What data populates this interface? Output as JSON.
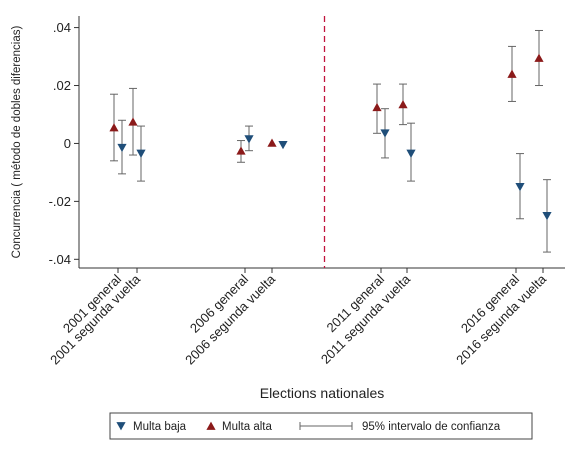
{
  "chart_data": {
    "type": "scatter",
    "title": "",
    "xlabel": "Elections nationales",
    "ylabel": "Concurrencia ( método de dobles diferencias)",
    "ylim": [
      -0.043,
      0.044
    ],
    "yticks": [
      {
        "value": 0.04,
        "label": ".04"
      },
      {
        "value": 0.02,
        "label": ".02"
      },
      {
        "value": 0,
        "label": "0"
      },
      {
        "value": -0.02,
        "label": "-.02"
      },
      {
        "value": -0.04,
        "label": "-.04"
      }
    ],
    "categories": [
      "2001 general",
      "2001 segunda vuelta",
      "2006 general",
      "2006 segunda vuelta",
      "2011 general",
      "2011 segunda vuelta",
      "2016 general",
      "2016 segunda vuelta"
    ],
    "reference_line": {
      "between": [
        "2006 segunda vuelta",
        "2011 general"
      ],
      "style": "dashed",
      "color": "#c0143c"
    },
    "grid": false,
    "legend_position": "bottom",
    "series": [
      {
        "name": "Multa alta",
        "marker": "triangle-up",
        "color": "#8b1a1a",
        "points": [
          {
            "category": "2001 general",
            "y": 0.0055,
            "ci": [
              -0.006,
              0.017
            ]
          },
          {
            "category": "2001 segunda vuelta",
            "y": 0.0075,
            "ci": [
              -0.004,
              0.019
            ]
          },
          {
            "category": "2006 general",
            "y": -0.0025,
            "ci": [
              -0.0065,
              0.001
            ]
          },
          {
            "category": "2006 segunda vuelta",
            "y": 0.0002,
            "ci": null
          },
          {
            "category": "2011 general",
            "y": 0.0125,
            "ci": [
              0.0035,
              0.0205
            ]
          },
          {
            "category": "2011 segunda vuelta",
            "y": 0.0135,
            "ci": [
              0.0065,
              0.0205
            ]
          },
          {
            "category": "2016 general",
            "y": 0.024,
            "ci": [
              0.0145,
              0.0335
            ]
          },
          {
            "category": "2016 segunda vuelta",
            "y": 0.0295,
            "ci": [
              0.02,
              0.039
            ]
          }
        ]
      },
      {
        "name": "Multa baja",
        "marker": "triangle-down",
        "color": "#1f4e79",
        "points": [
          {
            "category": "2001 general",
            "y": -0.0015,
            "ci": [
              -0.0105,
              0.008
            ]
          },
          {
            "category": "2001 segunda vuelta",
            "y": -0.0035,
            "ci": [
              -0.013,
              0.006
            ]
          },
          {
            "category": "2006 general",
            "y": 0.0015,
            "ci": [
              -0.0025,
              0.006
            ]
          },
          {
            "category": "2006 segunda vuelta",
            "y": -0.0005,
            "ci": null
          },
          {
            "category": "2011 general",
            "y": 0.0035,
            "ci": [
              -0.005,
              0.012
            ]
          },
          {
            "category": "2011 segunda vuelta",
            "y": -0.0035,
            "ci": [
              -0.013,
              0.007
            ]
          },
          {
            "category": "2016 general",
            "y": -0.015,
            "ci": [
              -0.026,
              -0.0035
            ]
          },
          {
            "category": "2016 segunda vuelta",
            "y": -0.025,
            "ci": [
              -0.0375,
              -0.0125
            ]
          }
        ]
      }
    ],
    "legend": [
      {
        "label": "Multa baja",
        "marker": "triangle-down"
      },
      {
        "label": "Multa alta",
        "marker": "triangle-up"
      },
      {
        "label": "95% intervalo de confianza",
        "marker": "ci-bar"
      }
    ]
  }
}
